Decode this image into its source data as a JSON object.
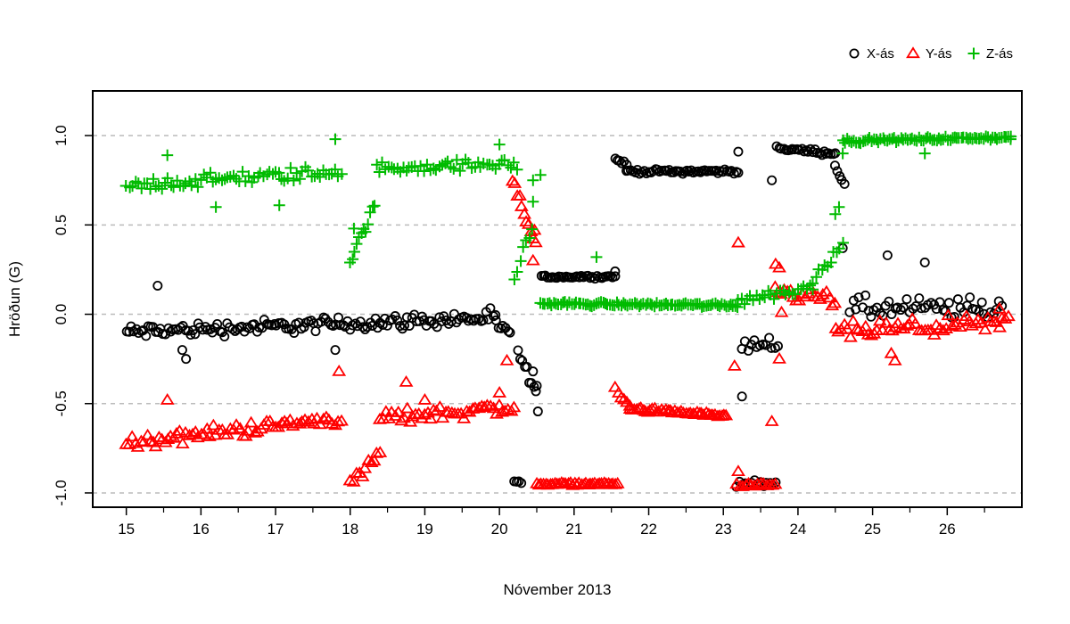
{
  "chart_data": {
    "type": "scatter",
    "title": "",
    "xlabel": "Nóvember 2013",
    "ylabel": "Hröðun (G)",
    "xlim": [
      14.55,
      27.0
    ],
    "ylim": [
      -1.08,
      1.25
    ],
    "x_ticks": [
      15,
      16,
      17,
      18,
      19,
      20,
      21,
      22,
      23,
      24,
      25,
      26
    ],
    "x_tick_labels": [
      "15",
      "16",
      "17",
      "18",
      "19",
      "20",
      "21",
      "22",
      "23",
      "24",
      "25",
      "26"
    ],
    "y_ticks": [
      -1.0,
      -0.5,
      0.0,
      0.5,
      1.0
    ],
    "y_tick_labels": [
      "-1.0",
      "-0.5",
      "0.0",
      "0.5",
      "1.0"
    ],
    "grid": "horizontal dashed at y ticks",
    "legend_position": "top-right",
    "series": [
      {
        "name": "X-ás",
        "marker": "circle",
        "color": "#000000",
        "segments": [
          {
            "x0": 15.0,
            "x1": 19.95,
            "y0": -0.1,
            "y1": -0.02,
            "noise": 0.05,
            "step": 0.033
          },
          {
            "x0": 19.95,
            "x1": 20.18,
            "y0": -0.06,
            "y1": -0.12,
            "noise": 0.04,
            "step": 0.033
          },
          {
            "x0": 20.25,
            "x1": 20.52,
            "y0": -0.2,
            "y1": -0.5,
            "noise": 0.05,
            "step": 0.03
          },
          {
            "x0": 20.2,
            "x1": 20.3,
            "y0": -0.94,
            "y1": -0.94,
            "noise": 0.02,
            "step": 0.03
          },
          {
            "x0": 20.56,
            "x1": 21.55,
            "y0": 0.21,
            "y1": 0.21,
            "noise": 0.01,
            "step": 0.03
          },
          {
            "x0": 21.55,
            "x1": 21.7,
            "y0": 0.87,
            "y1": 0.84,
            "noise": 0.01,
            "step": 0.03
          },
          {
            "x0": 21.7,
            "x1": 23.22,
            "y0": 0.8,
            "y1": 0.8,
            "noise": 0.015,
            "step": 0.03
          },
          {
            "x0": 23.18,
            "x1": 23.7,
            "y0": -0.95,
            "y1": -0.95,
            "noise": 0.02,
            "step": 0.04
          },
          {
            "x0": 23.25,
            "x1": 23.75,
            "y0": -0.18,
            "y1": -0.15,
            "noise": 0.05,
            "step": 0.04
          },
          {
            "x0": 23.72,
            "x1": 24.5,
            "y0": 0.93,
            "y1": 0.9,
            "noise": 0.015,
            "step": 0.03
          },
          {
            "x0": 24.5,
            "x1": 24.62,
            "y0": 0.84,
            "y1": 0.72,
            "noise": 0.02,
            "step": 0.03
          },
          {
            "x0": 24.7,
            "x1": 26.75,
            "y0": 0.03,
            "y1": 0.03,
            "noise": 0.08,
            "step": 0.04
          }
        ],
        "extra_points": [
          [
            15.42,
            0.16
          ],
          [
            15.75,
            -0.2
          ],
          [
            15.8,
            -0.25
          ],
          [
            17.8,
            -0.2
          ],
          [
            20.45,
            -0.32
          ],
          [
            20.5,
            -0.4
          ],
          [
            23.65,
            0.75
          ],
          [
            23.2,
            0.91
          ],
          [
            23.25,
            -0.46
          ],
          [
            24.6,
            0.37
          ],
          [
            25.2,
            0.33
          ],
          [
            25.7,
            0.29
          ],
          [
            21.55,
            0.24
          ]
        ]
      },
      {
        "name": "Y-ás",
        "marker": "triangle",
        "color": "#ff0000",
        "segments": [
          {
            "x0": 15.0,
            "x1": 17.9,
            "y0": -0.72,
            "y1": -0.58,
            "noise": 0.05,
            "step": 0.04
          },
          {
            "x0": 18.0,
            "x1": 18.4,
            "y0": -0.95,
            "y1": -0.78,
            "noise": 0.04,
            "step": 0.04
          },
          {
            "x0": 18.4,
            "x1": 20.2,
            "y0": -0.58,
            "y1": -0.52,
            "noise": 0.05,
            "step": 0.04
          },
          {
            "x0": 20.18,
            "x1": 20.5,
            "y0": 0.75,
            "y1": 0.35,
            "noise": 0.05,
            "step": 0.03
          },
          {
            "x0": 20.5,
            "x1": 21.6,
            "y0": -0.95,
            "y1": -0.95,
            "noise": 0.008,
            "step": 0.03
          },
          {
            "x0": 21.55,
            "x1": 21.75,
            "y0": -0.42,
            "y1": -0.52,
            "noise": 0.02,
            "step": 0.04
          },
          {
            "x0": 21.75,
            "x1": 23.05,
            "y0": -0.53,
            "y1": -0.57,
            "noise": 0.015,
            "step": 0.03
          },
          {
            "x0": 23.18,
            "x1": 23.72,
            "y0": -0.96,
            "y1": -0.96,
            "noise": 0.015,
            "step": 0.04
          },
          {
            "x0": 23.7,
            "x1": 24.5,
            "y0": 0.12,
            "y1": 0.08,
            "noise": 0.06,
            "step": 0.04
          },
          {
            "x0": 24.5,
            "x1": 26.85,
            "y0": -0.1,
            "y1": -0.05,
            "noise": 0.06,
            "step": 0.04
          }
        ],
        "extra_points": [
          [
            15.55,
            -0.48
          ],
          [
            17.85,
            -0.32
          ],
          [
            19.0,
            -0.48
          ],
          [
            18.75,
            -0.38
          ],
          [
            20.0,
            -0.44
          ],
          [
            20.1,
            -0.26
          ],
          [
            20.45,
            0.3
          ],
          [
            20.47,
            0.47
          ],
          [
            23.2,
            0.4
          ],
          [
            23.2,
            -0.88
          ],
          [
            23.65,
            -0.6
          ],
          [
            23.78,
            0.01
          ],
          [
            23.7,
            0.28
          ],
          [
            23.75,
            0.26
          ],
          [
            23.75,
            -0.25
          ],
          [
            23.15,
            -0.29
          ],
          [
            25.3,
            -0.26
          ],
          [
            25.25,
            -0.22
          ],
          [
            26.7,
            0.03
          ]
        ]
      },
      {
        "name": "Z-ás",
        "marker": "plus",
        "color": "#00bb00",
        "segments": [
          {
            "x0": 15.0,
            "x1": 17.9,
            "y0": 0.72,
            "y1": 0.8,
            "noise": 0.05,
            "step": 0.04
          },
          {
            "x0": 18.0,
            "x1": 18.35,
            "y0": 0.3,
            "y1": 0.62,
            "noise": 0.04,
            "step": 0.03
          },
          {
            "x0": 18.35,
            "x1": 20.25,
            "y0": 0.82,
            "y1": 0.84,
            "noise": 0.04,
            "step": 0.04
          },
          {
            "x0": 20.2,
            "x1": 20.45,
            "y0": 0.2,
            "y1": 0.5,
            "noise": 0.05,
            "step": 0.04
          },
          {
            "x0": 20.55,
            "x1": 23.2,
            "y0": 0.06,
            "y1": 0.05,
            "noise": 0.015,
            "step": 0.03
          },
          {
            "x0": 23.2,
            "x1": 24.2,
            "y0": 0.08,
            "y1": 0.15,
            "noise": 0.04,
            "step": 0.04
          },
          {
            "x0": 24.2,
            "x1": 24.6,
            "y0": 0.2,
            "y1": 0.4,
            "noise": 0.04,
            "step": 0.04
          },
          {
            "x0": 24.6,
            "x1": 26.85,
            "y0": 0.97,
            "y1": 0.99,
            "noise": 0.015,
            "step": 0.03
          }
        ],
        "extra_points": [
          [
            15.55,
            0.89
          ],
          [
            16.2,
            0.6
          ],
          [
            17.05,
            0.61
          ],
          [
            17.8,
            0.98
          ],
          [
            20.0,
            0.95
          ],
          [
            20.45,
            0.63
          ],
          [
            20.45,
            0.75
          ],
          [
            20.55,
            0.78
          ],
          [
            24.5,
            0.56
          ],
          [
            24.55,
            0.6
          ],
          [
            24.6,
            0.9
          ],
          [
            25.7,
            0.9
          ],
          [
            21.3,
            0.32
          ],
          [
            18.05,
            0.48
          ],
          [
            26.85,
            0.98
          ]
        ]
      }
    ]
  }
}
